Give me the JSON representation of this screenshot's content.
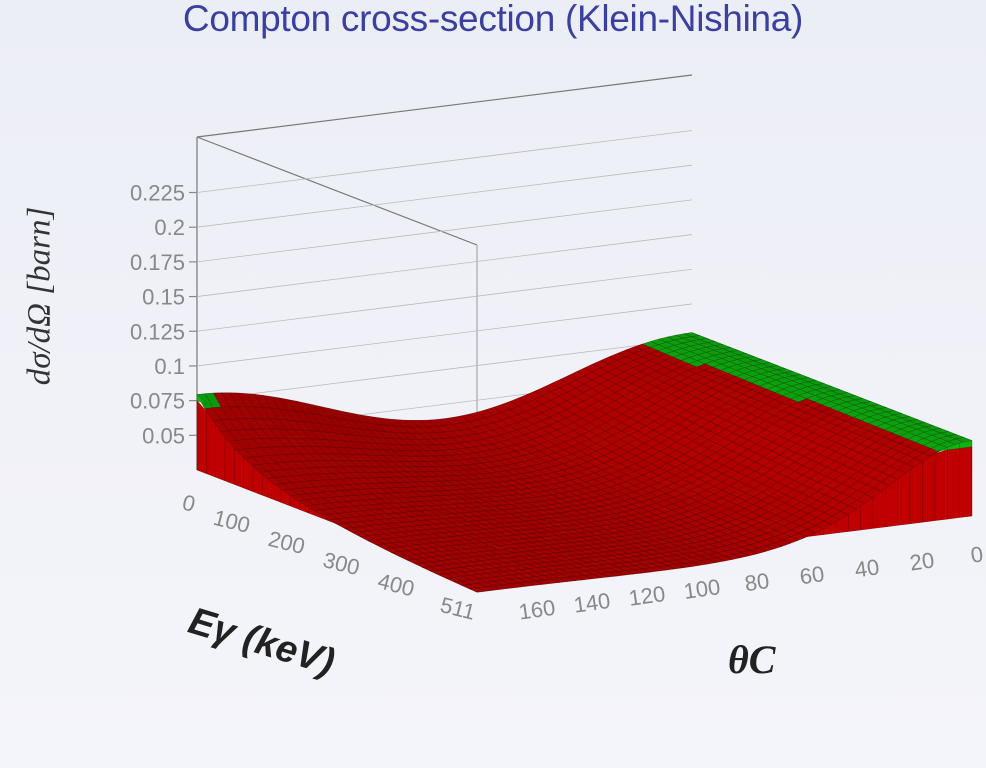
{
  "title": "Compton cross-section (Klein-Nishina)",
  "chart_data": {
    "type": "surface3d",
    "title": "Compton cross-section (Klein-Nishina)",
    "zlabel": "dσ/dΩ [barn]",
    "xlabel": "Eγ (keV)",
    "ylabel": "θC",
    "x_ticks": [
      "0",
      "100",
      "200",
      "300",
      "400",
      "511"
    ],
    "y_ticks": [
      "160",
      "140",
      "120",
      "100",
      "80",
      "60",
      "40",
      "20",
      "0"
    ],
    "z_ticks": [
      "0.05",
      "0.075",
      "0.1",
      "0.125",
      "0.15",
      "0.175",
      "0.2",
      "0.225"
    ],
    "x_range": [
      0,
      511
    ],
    "y_range": [
      0,
      180
    ],
    "z_range": [
      0.025,
      0.265
    ],
    "function": "Klein-Nishina differential cross-section",
    "color_bands": [
      {
        "from": 0.0,
        "to": 0.075,
        "color": "#d10000"
      },
      {
        "from": 0.075,
        "to": 0.125,
        "color": "#10c410"
      },
      {
        "from": 0.125,
        "to": 0.175,
        "color": "#0000c8"
      },
      {
        "from": 0.175,
        "to": 0.2,
        "color": "#dcdc00"
      },
      {
        "from": 0.2,
        "to": 0.225,
        "color": "#d200d2"
      },
      {
        "from": 0.225,
        "to": 0.3,
        "color": "#00d2d2"
      }
    ],
    "grid": true
  }
}
